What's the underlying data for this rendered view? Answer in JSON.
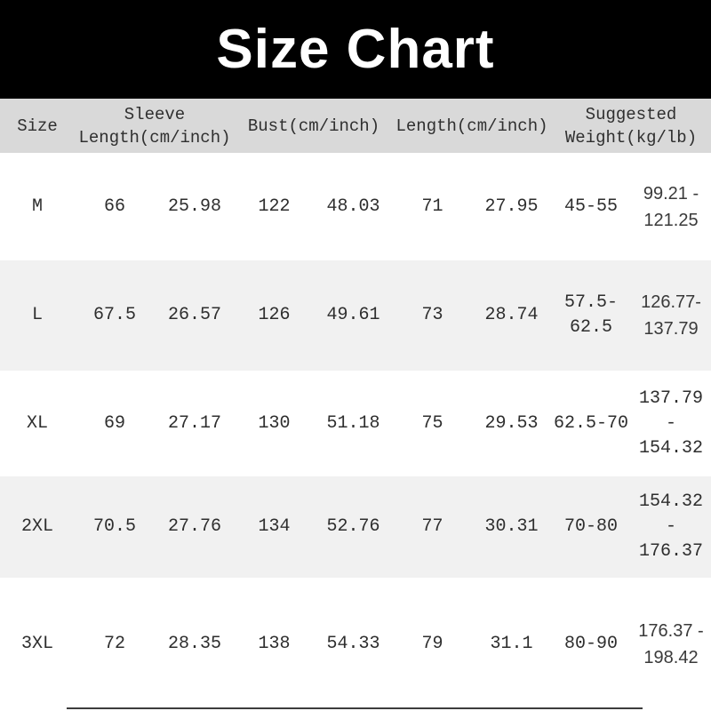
{
  "title": "Size Chart",
  "colors": {
    "banner_bg": "#000000",
    "banner_text": "#ffffff",
    "header_bg": "#d9d9d9",
    "row_bg": "#ffffff",
    "row_alt_bg": "#f1f1f1",
    "text": "#2e2e2e"
  },
  "chart_data": {
    "type": "table",
    "title": "Size Chart",
    "column_groups": [
      "Size",
      "Sleeve\nLength(cm/inch)",
      "Bust(cm/inch)",
      "Length(cm/inch)",
      "Suggested\nWeight(kg/lb)"
    ],
    "rows": [
      [
        "M",
        "66",
        "25.98",
        "122",
        "48.03",
        "71",
        "27.95",
        "45-55",
        "99.21 -\n121.25"
      ],
      [
        "L",
        "67.5",
        "26.57",
        "126",
        "49.61",
        "73",
        "28.74",
        "57.5-\n62.5",
        "126.77-\n137.79"
      ],
      [
        "XL",
        "69",
        "27.17",
        "130",
        "51.18",
        "75",
        "29.53",
        "62.5-70",
        "137.79\n-\n154.32"
      ],
      [
        "2XL",
        "70.5",
        "27.76",
        "134",
        "52.76",
        "77",
        "30.31",
        "70-80",
        "154.32\n-\n176.37"
      ],
      [
        "3XL",
        "72",
        "28.35",
        "138",
        "54.33",
        "79",
        "31.1",
        "80-90",
        "176.37 -\n198.42"
      ]
    ]
  }
}
